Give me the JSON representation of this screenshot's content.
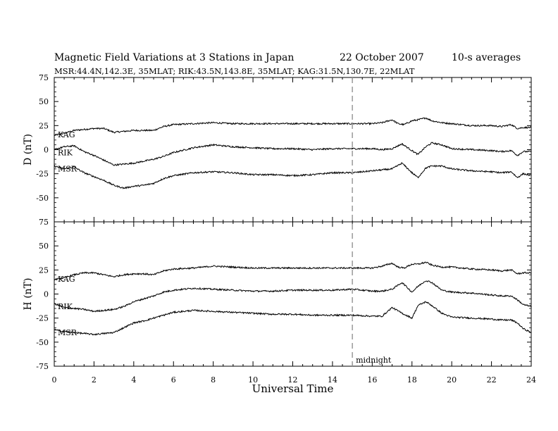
{
  "header": {
    "title": "Magnetic Field Variations at 3 Stations in Japan",
    "date": "22 October 2007",
    "averaging": "10-s averages",
    "stations": "MSR:44.4N,142.3E, 35MLAT;  RIK:43.5N,143.8E, 35MLAT;  KAG:31.5N,130.7E, 22MLAT"
  },
  "chart_data": {
    "type": "line",
    "xlabel": "Universal Time",
    "xlim": [
      0,
      24
    ],
    "xticks": [
      0,
      2,
      4,
      6,
      8,
      10,
      12,
      14,
      16,
      18,
      20,
      22,
      24
    ],
    "annotations": [
      {
        "x": 15,
        "label": "midnight",
        "style": "dashed vertical line"
      }
    ],
    "grid": false,
    "panels": [
      {
        "ylabel": "D (nT)",
        "ylim": [
          -75,
          75
        ],
        "yticks": [
          75,
          50,
          25,
          0,
          -25,
          -50,
          -75
        ],
        "series": [
          {
            "name": "KAG",
            "x": [
              0,
              0.5,
              1,
              1.5,
              2,
              2.5,
              3,
              3.5,
              4,
              4.5,
              5,
              5.5,
              6,
              7,
              8,
              9,
              10,
              11,
              12,
              13,
              14,
              15,
              16,
              16.5,
              17,
              17.3,
              17.6,
              18,
              18.3,
              18.7,
              19,
              19.5,
              20,
              21,
              22,
              22.5,
              23,
              23.3,
              23.6,
              24
            ],
            "values": [
              15,
              17,
              20,
              21,
              22,
              22,
              18,
              19,
              20,
              20,
              20,
              24,
              26,
              27,
              28,
              27,
              27,
              27,
              27,
              27,
              27,
              27,
              27,
              28,
              31,
              27,
              26,
              30,
              31,
              33,
              30,
              28,
              27,
              25,
              25,
              24,
              26,
              22,
              23,
              23
            ]
          },
          {
            "name": "RIK",
            "x": [
              0,
              0.5,
              1,
              1.5,
              2,
              2.5,
              3,
              3.5,
              4,
              4.5,
              5,
              5.5,
              6,
              7,
              8,
              9,
              10,
              11,
              12,
              13,
              14,
              15,
              16,
              16.5,
              17,
              17.5,
              18,
              18.3,
              18.7,
              19,
              19.5,
              20,
              21,
              22,
              22.5,
              23,
              23.3,
              23.6,
              24
            ],
            "values": [
              0,
              3,
              4,
              -2,
              -6,
              -11,
              -16,
              -15,
              -14,
              -12,
              -10,
              -7,
              -3,
              2,
              5,
              3,
              2,
              1,
              1,
              0,
              1,
              1,
              1,
              0,
              1,
              6,
              -1,
              -5,
              3,
              7,
              5,
              1,
              0,
              -1,
              -2,
              -1,
              -6,
              -2,
              -2
            ]
          },
          {
            "name": "MSR",
            "x": [
              0,
              0.5,
              1,
              1.5,
              2,
              2.5,
              3,
              3.5,
              4,
              4.5,
              5,
              5.5,
              6,
              7,
              8,
              9,
              10,
              11,
              12,
              13,
              14,
              15,
              16,
              16.5,
              17,
              17.5,
              18,
              18.3,
              18.7,
              19,
              19.5,
              20,
              21,
              22,
              22.5,
              23,
              23.3,
              23.6,
              24
            ],
            "values": [
              -17,
              -20,
              -18,
              -24,
              -28,
              -32,
              -37,
              -40,
              -38,
              -37,
              -35,
              -30,
              -27,
              -24,
              -23,
              -24,
              -26,
              -26,
              -27,
              -26,
              -24,
              -24,
              -22,
              -21,
              -20,
              -14,
              -24,
              -29,
              -19,
              -17,
              -17,
              -20,
              -22,
              -23,
              -24,
              -23,
              -29,
              -25,
              -27
            ]
          }
        ]
      },
      {
        "ylabel": "H (nT)",
        "ylim": [
          -75,
          75
        ],
        "yticks": [
          75,
          50,
          25,
          0,
          -25,
          -50,
          -75
        ],
        "series": [
          {
            "name": "KAG",
            "x": [
              0,
              0.5,
              1,
              1.5,
              2,
              2.5,
              3,
              3.5,
              4,
              4.5,
              5,
              5.5,
              6,
              7,
              8,
              9,
              10,
              11,
              12,
              13,
              14,
              15,
              16,
              16.5,
              17,
              17.3,
              17.6,
              18,
              18.3,
              18.7,
              19,
              19.5,
              20,
              21,
              22,
              22.5,
              23,
              23.3,
              23.6,
              24
            ],
            "values": [
              15,
              17,
              20,
              22,
              22,
              20,
              18,
              20,
              21,
              21,
              20,
              24,
              26,
              27,
              29,
              28,
              27,
              27,
              27,
              27,
              27,
              27,
              27,
              29,
              32,
              28,
              27,
              31,
              31,
              33,
              30,
              28,
              28,
              26,
              25,
              24,
              25,
              21,
              22,
              22
            ]
          },
          {
            "name": "RIK",
            "x": [
              0,
              0.5,
              1,
              1.5,
              2,
              2.5,
              3,
              3.5,
              4,
              4.5,
              5,
              5.5,
              6,
              7,
              8,
              9,
              10,
              11,
              12,
              13,
              14,
              15,
              16,
              16.5,
              17,
              17.5,
              18,
              18.3,
              18.7,
              19,
              19.5,
              20,
              21,
              22,
              22.5,
              23,
              23.3,
              23.6,
              24
            ],
            "values": [
              -10,
              -14,
              -15,
              -16,
              -18,
              -17,
              -16,
              -13,
              -8,
              -5,
              -2,
              2,
              4,
              6,
              5,
              4,
              3,
              3,
              4,
              4,
              4,
              5,
              3,
              3,
              5,
              12,
              2,
              8,
              14,
              12,
              4,
              2,
              1,
              -1,
              -2,
              -2,
              -6,
              -11,
              -13
            ]
          },
          {
            "name": "MSR",
            "x": [
              0,
              0.5,
              1,
              1.5,
              2,
              2.5,
              3,
              3.5,
              4,
              4.5,
              5,
              5.5,
              6,
              7,
              8,
              9,
              10,
              11,
              12,
              13,
              14,
              15,
              16,
              16.5,
              17,
              17.5,
              18,
              18.3,
              18.7,
              19,
              19.5,
              20,
              21,
              22,
              22.5,
              23,
              23.3,
              23.6,
              24
            ],
            "values": [
              -37,
              -39,
              -40,
              -41,
              -42,
              -41,
              -40,
              -35,
              -30,
              -28,
              -25,
              -22,
              -19,
              -17,
              -18,
              -19,
              -20,
              -21,
              -21,
              -22,
              -22,
              -22,
              -23,
              -23,
              -14,
              -20,
              -25,
              -12,
              -8,
              -12,
              -20,
              -24,
              -25,
              -26,
              -27,
              -27,
              -30,
              -36,
              -40
            ]
          }
        ]
      }
    ]
  }
}
